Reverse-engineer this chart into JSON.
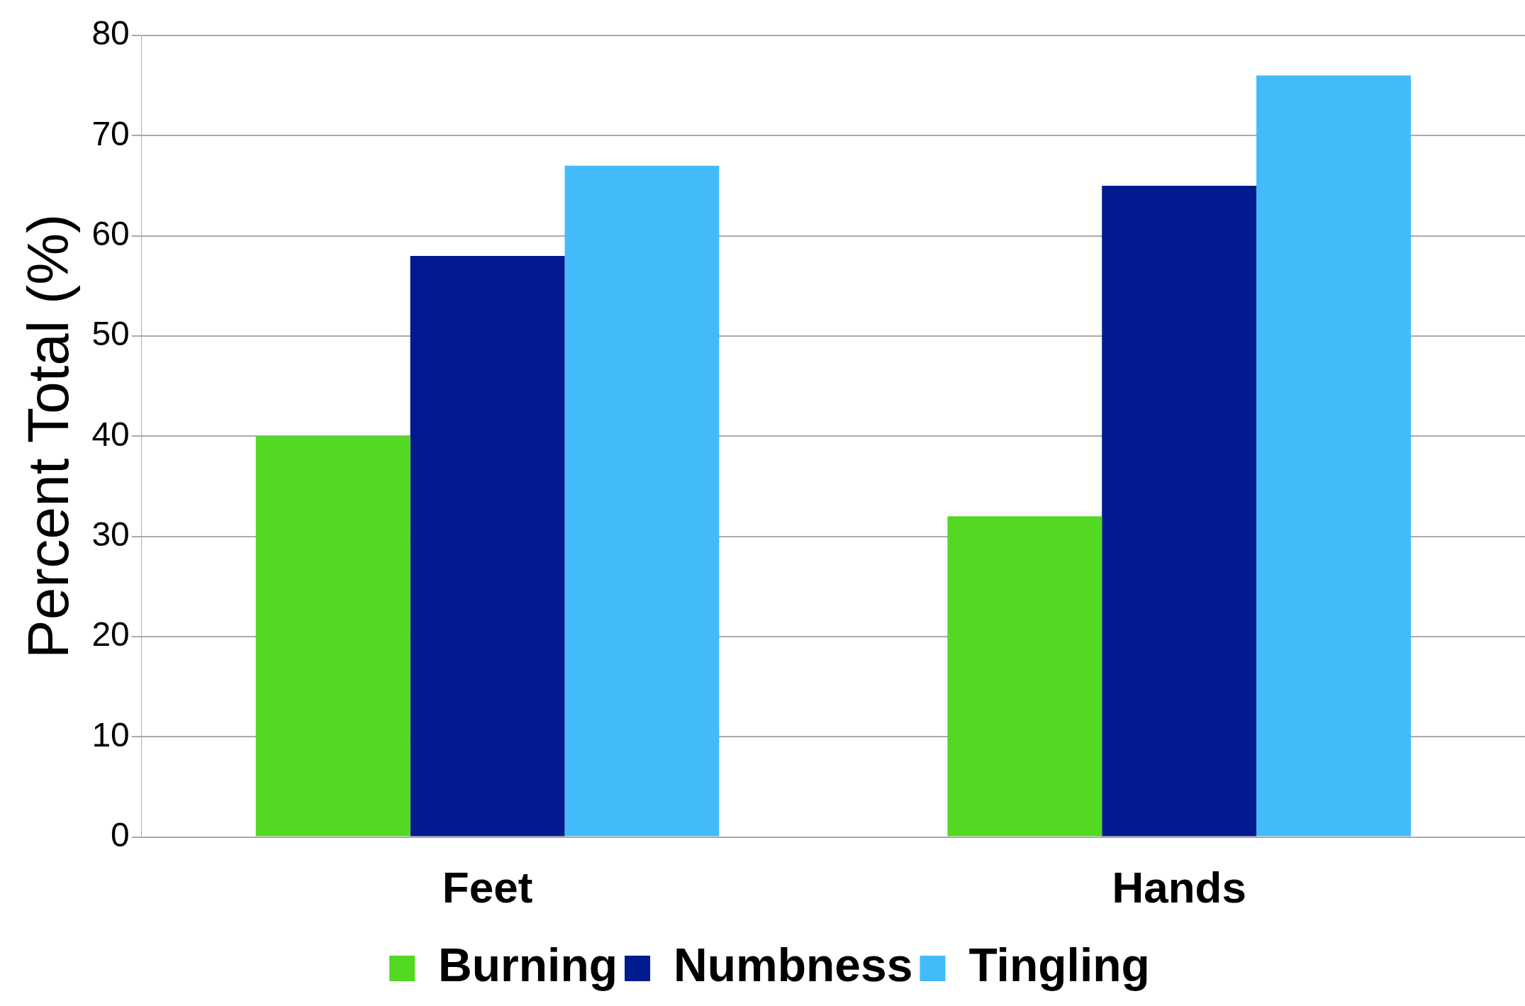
{
  "chart_data": {
    "type": "bar",
    "ylabel": "Percent Total (%)",
    "categories": [
      "Feet",
      "Hands"
    ],
    "series": [
      {
        "name": "Burning",
        "color": "#53d922",
        "values": [
          40,
          32
        ]
      },
      {
        "name": "Numbness",
        "color": "#021a8f",
        "values": [
          58,
          65
        ]
      },
      {
        "name": "Tingling",
        "color": "#43bbfa",
        "values": [
          67,
          76
        ]
      }
    ],
    "ylim": [
      0,
      80
    ],
    "yticks": [
      0,
      10,
      20,
      30,
      40,
      50,
      60,
      70,
      80
    ],
    "grid": "y",
    "legend": "bottom"
  }
}
